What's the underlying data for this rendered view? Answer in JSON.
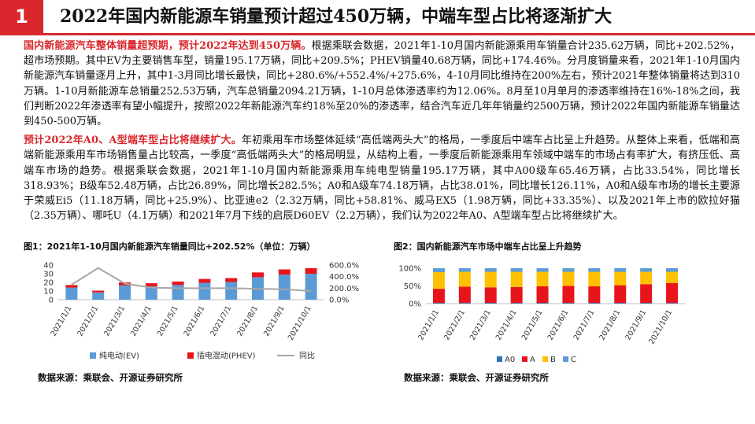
{
  "header": {
    "number": "1",
    "title": "2022年国内新能源车销量预计超过450万辆，中端车型占比将逐渐扩大"
  },
  "paragraphs": [
    {
      "highlight": "国内新能源汽车整体销量超预期，预计2022年达到450万辆。",
      "text": "根据乘联会数据，2021年1-10月国内新能源乘用车销量合计235.62万辆，同比+202.52%，超市场预期。其中EV为主要销售车型，销量195.17万辆，同比+209.5%；PHEV销量40.68万辆，同比+174.46%。分月度销量来看，2021年1-10月国内新能源汽车销量逐月上升，其中1-3月同比增长最快，同比+280.6%/+552.4%/+275.6%，4-10月同比维持在200%左右，预计2021年整体销量将达到310万辆。1-10月新能源车总销量252.53万辆，汽车总销量2094.21万辆，1-10月总体渗透率约为12.06%。8月至10月单月的渗透率维持在16%-18%之间，我们判断2022年渗透率有望小幅提升，按照2022年新能源汽车约18%至20%的渗透率，结合汽车近几年年销量约2500万辆，预计2022年国内新能源车销量达到450-500万辆。"
    },
    {
      "highlight": "预计2022年A0、A型端车型占比将继续扩大。",
      "text": "年初乘用车市场整体延续“高低端两头大”的格局，一季度后中端车占比呈上升趋势。从整体上来看，低端和高端新能源乘用车市场销售量占比较高，一季度“高低端两头大”的格局明显，从结构上看，一季度后新能源乘用车领域中端车的市场占有率扩大，有挤压低、高端车市场的趋势。根据乘联会数据，2021年1-10月国内新能源乘用车纯电型销量195.17万辆，其中A00级车65.46万辆，占比33.54%，同比增长318.93%；B级车52.48万辆，占比26.89%，同比增长282.5%；A0和A级车74.18万辆，占比38.01%，同比增长126.11%，A0和A级车市场的增长主要源于荣威Ei5（11.18万辆，同比+25.9%）、比亚迪e2（2.32万辆，同比+58.81%、威马EX5（1.98万辆，同比+33.35%）、以及2021年上市的欧拉好猫（2.35万辆）、哪吒U（4.1万辆）和2021年7月下线的启辰D60EV（2.2万辆），我们认为2022年A0、A型端车型占比将继续扩大。"
    }
  ],
  "figures": {
    "fig1_caption": "图1：2021年1-10月国内新能源汽车销量同比+202.52%（单位：万辆）",
    "fig2_caption": "图2：国内新能源汽车市场中端车占比呈上升趋势",
    "source1": "数据来源：乘联会、开源证券研究所",
    "source2": "数据来源：乘联会、开源证券研究所"
  },
  "colors": {
    "accent": "#d9272d",
    "ev": "#5b9bd5",
    "phev": "#e8141c",
    "yoy": "#a6a6a6",
    "a0": "#2e75b6",
    "a": "#e8141c",
    "b": "#ffc000",
    "c": "#5b9bd5"
  },
  "chart_data": [
    {
      "type": "bar",
      "stacked": true,
      "categories": [
        "2021/1/1",
        "2021/2/1",
        "2021/3/1",
        "2021/4/1",
        "2021/5/1",
        "2021/6/1",
        "2021/7/1",
        "2021/8/1",
        "2021/9/1",
        "2021/10/1"
      ],
      "series": [
        {
          "name": "纯电动(EV)",
          "values": [
            14.0,
            8.5,
            16.5,
            15.5,
            17.0,
            19.5,
            20.5,
            26.0,
            29.0,
            30.0
          ],
          "axis": "left"
        },
        {
          "name": "插电混动(PHEV)",
          "values": [
            3.0,
            2.0,
            3.5,
            3.5,
            4.0,
            4.5,
            4.5,
            5.5,
            6.0,
            6.5
          ],
          "axis": "left"
        },
        {
          "name": "同比",
          "type": "line",
          "values": [
            260,
            550,
            280,
            210,
            200,
            200,
            200,
            190,
            180,
            150
          ],
          "axis": "right"
        }
      ],
      "ylim": [
        0,
        40
      ],
      "yticks": [
        0,
        10,
        20,
        30,
        40
      ],
      "y2lim": [
        0,
        600
      ],
      "y2ticks": [
        "0.0%",
        "200.0%",
        "400.0%",
        "600.0%"
      ],
      "legend": "bottom"
    },
    {
      "type": "bar",
      "stacked": true,
      "categories": [
        "2021/1/1",
        "2021/2/1",
        "2021/3/1",
        "2021/4/1",
        "2021/5/1",
        "2021/6/1",
        "2021/7/1",
        "2021/8/1",
        "2021/9/1",
        "2021/10/1"
      ],
      "series": [
        {
          "name": "A0",
          "values": [
            2,
            2,
            2,
            2,
            2,
            2,
            2,
            2,
            2,
            2
          ]
        },
        {
          "name": "A",
          "values": [
            40,
            46,
            44,
            45,
            47,
            48,
            47,
            50,
            53,
            56
          ]
        },
        {
          "name": "B",
          "values": [
            47,
            42,
            44,
            43,
            41,
            40,
            41,
            38,
            35,
            32
          ]
        },
        {
          "name": "C",
          "values": [
            11,
            10,
            10,
            10,
            10,
            10,
            10,
            10,
            10,
            10
          ]
        }
      ],
      "ylim": [
        0,
        100
      ],
      "yticks": [
        "0%",
        "50%",
        "100%"
      ],
      "legend": "bottom"
    }
  ]
}
